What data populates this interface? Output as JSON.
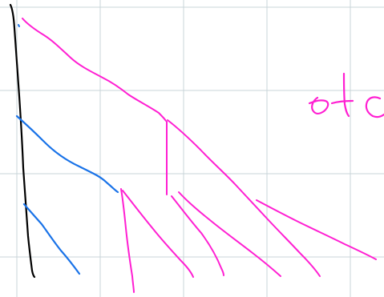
{
  "ink_colors": {
    "black": "#000000",
    "blue": "#1a73e8",
    "magenta": "#ff1fd2"
  },
  "grid_color": "#c9d4d8",
  "handwriting": {
    "etc": "etc"
  }
}
